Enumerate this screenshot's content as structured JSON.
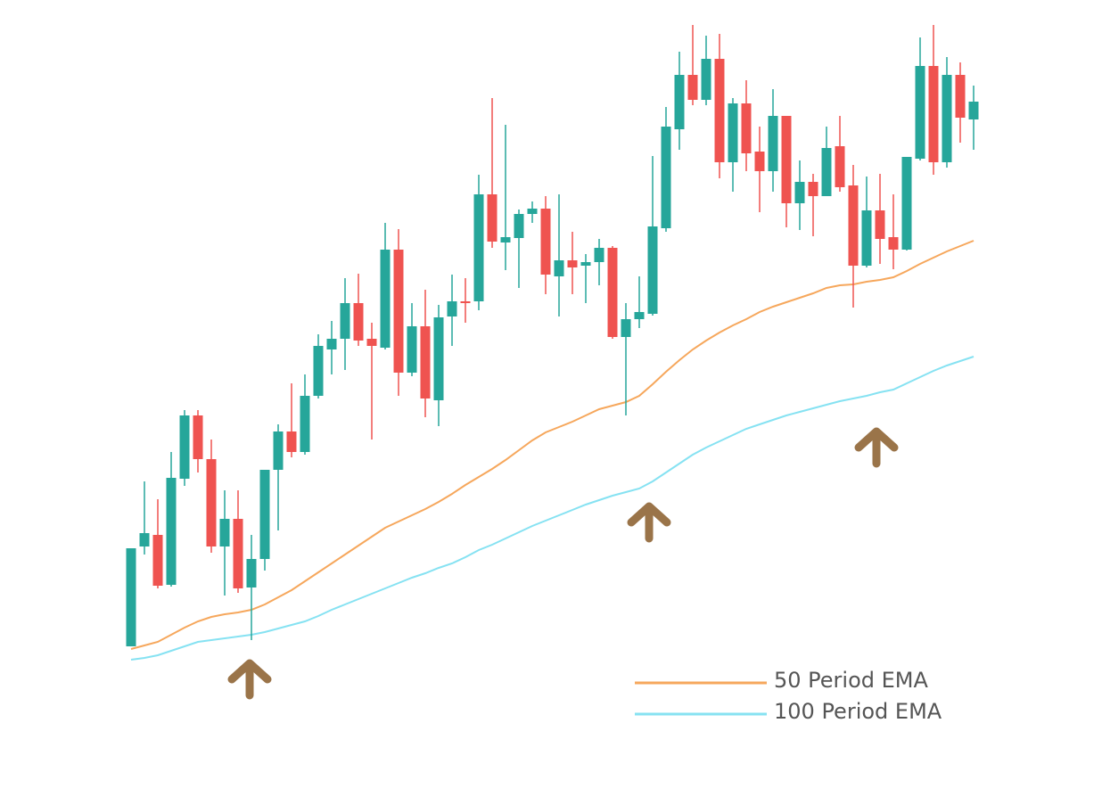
{
  "chart_data": {
    "type": "candlestick",
    "ylim": [
      0,
      894
    ],
    "up_color": "#26a69a",
    "down_color": "#ef5350",
    "open": [
      169,
      281,
      294,
      238,
      357,
      428,
      379,
      281,
      312,
      235,
      267,
      367,
      410,
      387,
      450,
      502,
      514,
      554,
      514,
      504,
      614,
      476,
      528,
      445,
      539,
      556,
      556,
      676,
      622,
      627,
      654,
      660,
      584,
      602,
      596,
      600,
      616,
      516,
      536,
      542,
      638,
      749,
      810,
      782,
      828,
      712,
      778,
      724,
      702,
      764,
      666,
      690,
      674,
      730,
      686,
      596,
      658,
      628,
      614,
      716,
      820,
      712,
      810,
      760
    ],
    "high": [
      279,
      354,
      334,
      387,
      434,
      434,
      401,
      344,
      344,
      294,
      367,
      418,
      464,
      474,
      519,
      534,
      582,
      587,
      532,
      644,
      637,
      554,
      569,
      552,
      586,
      582,
      698,
      784,
      754,
      659,
      668,
      674,
      676,
      634,
      609,
      626,
      618,
      554,
      584,
      719,
      774,
      836,
      866,
      854,
      856,
      784,
      804,
      752,
      794,
      764,
      714,
      699,
      752,
      764,
      709,
      696,
      699,
      676,
      718,
      852,
      866,
      830,
      824,
      798
    ],
    "low": [
      169,
      272,
      234,
      236,
      349,
      364,
      274,
      226,
      229,
      176,
      254,
      299,
      381,
      384,
      447,
      474,
      479,
      506,
      401,
      502,
      450,
      472,
      426,
      416,
      506,
      532,
      546,
      616,
      591,
      571,
      644,
      564,
      539,
      564,
      554,
      574,
      514,
      428,
      526,
      540,
      634,
      726,
      776,
      776,
      694,
      679,
      702,
      656,
      679,
      639,
      636,
      629,
      674,
      679,
      549,
      594,
      598,
      592,
      613,
      714,
      698,
      706,
      734,
      726
    ],
    "close": [
      279,
      296,
      237,
      358,
      428,
      379,
      281,
      312,
      234,
      267,
      367,
      410,
      387,
      450,
      506,
      514,
      554,
      512,
      506,
      614,
      476,
      528,
      447,
      538,
      556,
      554,
      676,
      623,
      628,
      654,
      660,
      586,
      602,
      594,
      600,
      616,
      516,
      536,
      544,
      640,
      752,
      810,
      782,
      828,
      712,
      778,
      722,
      702,
      764,
      666,
      690,
      674,
      728,
      684,
      596,
      658,
      626,
      614,
      718,
      820,
      712,
      810,
      762,
      780
    ],
    "series": [
      {
        "name": "50 Period EMA",
        "color": "#f6a75c",
        "values": [
          166,
          170,
          174,
          182,
          190,
          197,
          202,
          205,
          207,
          210,
          216,
          224,
          232,
          242,
          252,
          262,
          272,
          282,
          292,
          302,
          309,
          316,
          323,
          331,
          340,
          350,
          359,
          368,
          378,
          389,
          400,
          409,
          415,
          421,
          428,
          435,
          439,
          443,
          450,
          463,
          477,
          490,
          502,
          512,
          521,
          529,
          536,
          544,
          550,
          555,
          560,
          565,
          571,
          574,
          575,
          578,
          580,
          583,
          590,
          598,
          605,
          612,
          618,
          624
        ]
      },
      {
        "name": "100 Period EMA",
        "color": "#86e2f2",
        "values": [
          154,
          156,
          159,
          164,
          169,
          174,
          176,
          178,
          180,
          182,
          185,
          189,
          193,
          197,
          203,
          210,
          216,
          222,
          228,
          234,
          240,
          246,
          251,
          257,
          262,
          269,
          277,
          283,
          290,
          297,
          304,
          310,
          316,
          322,
          328,
          333,
          338,
          342,
          346,
          354,
          364,
          374,
          384,
          392,
          399,
          406,
          413,
          418,
          423,
          428,
          432,
          436,
          440,
          444,
          447,
          450,
          454,
          457,
          464,
          471,
          478,
          484,
          489,
          494
        ]
      }
    ]
  }
}
